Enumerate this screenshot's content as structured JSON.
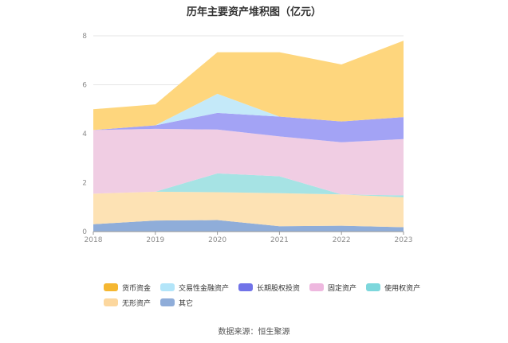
{
  "title": "历年主要资产堆积图（亿元）",
  "source": "数据来源：恒生聚源",
  "chart_data": {
    "type": "area",
    "stacked": true,
    "title": "历年主要资产堆积图（亿元）",
    "x": [
      "2018",
      "2019",
      "2020",
      "2021",
      "2022",
      "2023"
    ],
    "ylim": [
      0,
      8
    ],
    "yticks": [
      0,
      2,
      4,
      6,
      8
    ],
    "grid": true,
    "legend_position": "bottom",
    "series": [
      {
        "name": "其它",
        "color": "#8fadd9",
        "values": [
          0.3,
          0.45,
          0.47,
          0.22,
          0.24,
          0.18
        ]
      },
      {
        "name": "无形资产",
        "color": "#fde2b4",
        "values": [
          1.25,
          1.18,
          1.14,
          1.35,
          1.28,
          1.22
        ]
      },
      {
        "name": "使用权资产",
        "color": "#a6e3e4",
        "values": [
          0.0,
          0.0,
          0.77,
          0.69,
          0.0,
          0.08
        ]
      },
      {
        "name": "固定资产",
        "color": "#f0cde3",
        "values": [
          2.6,
          2.57,
          1.79,
          1.63,
          2.13,
          2.3
        ]
      },
      {
        "name": "长期股权投资",
        "color": "#a3a3f5",
        "values": [
          0.0,
          0.14,
          0.68,
          0.81,
          0.85,
          0.9
        ]
      },
      {
        "name": "交易性金融资产",
        "color": "#c4e9f9",
        "values": [
          0.0,
          0.0,
          0.78,
          0.0,
          0.0,
          0.0
        ]
      },
      {
        "name": "货币资金",
        "color": "#fed67d",
        "values": [
          0.85,
          0.86,
          1.7,
          2.63,
          2.33,
          3.12
        ]
      }
    ],
    "legend": [
      {
        "name": "货币资金",
        "color": "#f5b731"
      },
      {
        "name": "交易性金融资产",
        "color": "#b3e5f9"
      },
      {
        "name": "长期股权投资",
        "color": "#7173e8"
      },
      {
        "name": "固定资产",
        "color": "#eeb8df"
      },
      {
        "name": "使用权资产",
        "color": "#7dd7dc"
      },
      {
        "name": "无形资产",
        "color": "#fcd79e"
      },
      {
        "name": "其它",
        "color": "#8fadd9"
      }
    ]
  }
}
